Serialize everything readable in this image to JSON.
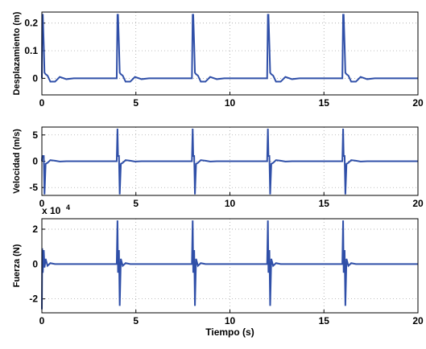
{
  "chart_data": [
    {
      "type": "line",
      "y_label": "Desplazamiento (m)",
      "color": "#2f4fa8",
      "grid": true,
      "x": [
        0,
        0.02,
        0.05,
        0.1,
        0.14,
        0.2,
        0.3,
        0.45,
        0.7,
        0.95,
        1.3,
        1.7,
        3.98,
        4.02,
        4.05,
        4.1,
        4.14,
        4.2,
        4.3,
        4.45,
        4.7,
        4.95,
        5.3,
        5.7,
        7.98,
        8.02,
        8.05,
        8.1,
        8.14,
        8.2,
        8.3,
        8.45,
        8.7,
        8.95,
        9.3,
        9.7,
        11.98,
        12.02,
        12.05,
        12.1,
        12.14,
        12.2,
        12.3,
        12.45,
        12.7,
        12.95,
        13.3,
        13.7,
        15.98,
        16.02,
        16.05,
        16.1,
        16.14,
        16.2,
        16.3,
        16.45,
        16.7,
        16.95,
        17.3,
        17.7,
        20
      ],
      "values": [
        0,
        0.23,
        0.23,
        0.12,
        0.02,
        0.015,
        0.01,
        -0.012,
        -0.012,
        0.005,
        -0.003,
        0,
        0,
        0.23,
        0.23,
        0.12,
        0.02,
        0.015,
        0.01,
        -0.012,
        -0.012,
        0.005,
        -0.003,
        0,
        0,
        0.23,
        0.23,
        0.12,
        0.02,
        0.015,
        0.01,
        -0.012,
        -0.012,
        0.005,
        -0.003,
        0,
        0,
        0.23,
        0.23,
        0.12,
        0.02,
        0.015,
        0.01,
        -0.012,
        -0.012,
        0.005,
        -0.003,
        0,
        0,
        0.23,
        0.23,
        0.12,
        0.02,
        0.015,
        0.01,
        -0.012,
        -0.012,
        0.005,
        -0.003,
        0,
        0
      ],
      "xlim": [
        0,
        20
      ],
      "xticks": [
        0,
        5,
        10,
        15,
        20
      ],
      "ylim": [
        -0.06,
        0.24
      ],
      "yticks": [
        0,
        0.1,
        0.2
      ]
    },
    {
      "type": "line",
      "y_label": "Velocidad (m/s)",
      "color": "#2f4fa8",
      "grid": true,
      "x": [
        0,
        0.02,
        0.05,
        0.1,
        0.14,
        0.2,
        0.3,
        0.45,
        0.7,
        0.95,
        1.3,
        1.7,
        3.98,
        4.02,
        4.05,
        4.1,
        4.14,
        4.2,
        4.3,
        4.45,
        4.7,
        4.95,
        5.3,
        5.7,
        7.98,
        8.02,
        8.05,
        8.1,
        8.14,
        8.2,
        8.3,
        8.45,
        8.7,
        8.95,
        9.3,
        9.7,
        11.98,
        12.02,
        12.05,
        12.1,
        12.14,
        12.2,
        12.3,
        12.45,
        12.7,
        12.95,
        13.3,
        13.7,
        15.98,
        16.02,
        16.05,
        16.1,
        16.14,
        16.2,
        16.3,
        16.45,
        16.7,
        16.95,
        17.3,
        17.7,
        20
      ],
      "values": [
        0,
        1,
        1,
        1,
        -6.3,
        -0.5,
        -0.3,
        0.2,
        0.1,
        -0.05,
        0,
        0,
        0,
        6.2,
        1,
        1,
        -6.3,
        -0.5,
        -0.3,
        0.2,
        0.1,
        -0.05,
        0,
        0,
        0,
        6.2,
        1,
        1,
        -6.3,
        -0.5,
        -0.3,
        0.2,
        0.1,
        -0.05,
        0,
        0,
        0,
        6.2,
        1,
        1,
        -6.3,
        -0.5,
        -0.3,
        0.2,
        0.1,
        -0.05,
        0,
        0,
        0,
        6.2,
        1,
        1,
        -6.3,
        -0.5,
        -0.3,
        0.2,
        0.1,
        -0.05,
        0,
        0,
        0
      ],
      "xlim": [
        0,
        20
      ],
      "xticks": [
        0,
        5,
        10,
        15,
        20
      ],
      "ylim": [
        -6.5,
        6.5
      ],
      "yticks": [
        -5,
        0,
        5
      ]
    },
    {
      "type": "line",
      "y_label": "Fuerza (N)",
      "x_label": "Tiempo (s)",
      "exponent_base": "x 10",
      "exponent": "4",
      "color": "#2f4fa8",
      "grid": true,
      "x": [
        0,
        0.02,
        0.05,
        0.1,
        0.14,
        0.2,
        0.3,
        0.45,
        0.7,
        0.95,
        1.3,
        1.7,
        3.98,
        4.02,
        4.05,
        4.1,
        4.14,
        4.2,
        4.3,
        4.45,
        4.7,
        4.95,
        5.3,
        5.7,
        7.98,
        8.02,
        8.05,
        8.1,
        8.14,
        8.2,
        8.3,
        8.45,
        8.7,
        8.95,
        9.3,
        9.7,
        11.98,
        12.02,
        12.05,
        12.1,
        12.14,
        12.2,
        12.3,
        12.45,
        12.7,
        12.95,
        13.3,
        13.7,
        15.98,
        16.02,
        16.05,
        16.1,
        16.14,
        16.2,
        16.3,
        16.45,
        16.7,
        16.95,
        17.3,
        17.7,
        20
      ],
      "values": [
        -26000,
        9000,
        -5000,
        8000,
        -2000,
        3000,
        -1000,
        500,
        0,
        0,
        0,
        0,
        0,
        25000,
        -5000,
        8000,
        -24000,
        3000,
        -1000,
        500,
        0,
        0,
        0,
        0,
        0,
        25000,
        -5000,
        8000,
        -24000,
        3000,
        -1000,
        500,
        0,
        0,
        0,
        0,
        0,
        25000,
        -5000,
        8000,
        -24000,
        3000,
        -1000,
        500,
        0,
        0,
        0,
        0,
        0,
        25000,
        -5000,
        8000,
        -24000,
        3000,
        -1000,
        500,
        0,
        0,
        0,
        0,
        0
      ],
      "xlim": [
        0,
        20
      ],
      "xticks": [
        0,
        5,
        10,
        15,
        20
      ],
      "ylim": [
        -28000,
        26000
      ],
      "yticks": [
        {
          "value": -20000,
          "label": "-2"
        },
        0,
        {
          "value": 20000,
          "label": "2"
        }
      ]
    }
  ]
}
